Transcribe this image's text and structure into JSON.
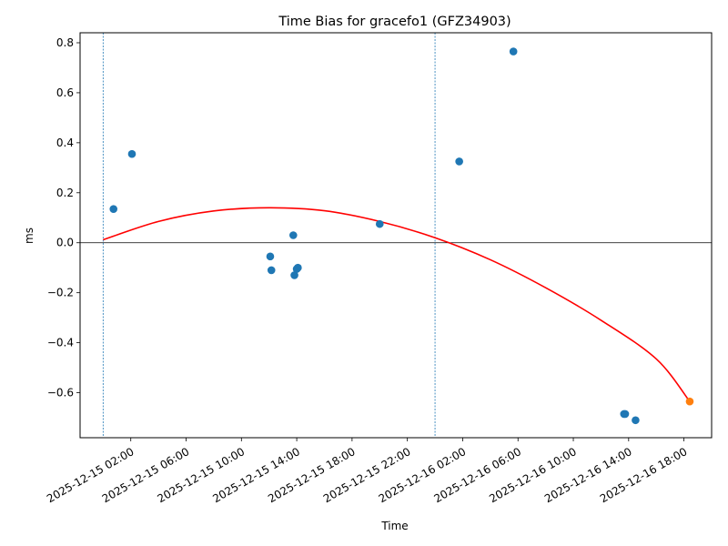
{
  "chart_data": {
    "type": "scatter",
    "title": "Time Bias for gracefo1 (GFZ34903)",
    "xlabel": "Time",
    "ylabel": "ms",
    "xlim": [
      "2025-12-14 22:20",
      "2025-12-16 20:00"
    ],
    "ylim": [
      -0.78,
      0.84
    ],
    "yticks": [
      -0.6,
      -0.4,
      -0.2,
      0.0,
      0.2,
      0.4,
      0.6,
      0.8
    ],
    "ytick_labels": [
      "−0.6",
      "−0.4",
      "−0.2",
      "0.0",
      "0.2",
      "0.4",
      "0.6",
      "0.8"
    ],
    "xticks": [
      "2025-12-15 02:00",
      "2025-12-15 06:00",
      "2025-12-15 10:00",
      "2025-12-15 14:00",
      "2025-12-15 18:00",
      "2025-12-15 22:00",
      "2025-12-16 02:00",
      "2025-12-16 06:00",
      "2025-12-16 10:00",
      "2025-12-16 14:00",
      "2025-12-16 18:00"
    ],
    "grid": false,
    "zero_line": 0,
    "vertical_lines": [
      "2025-12-15 00:00",
      "2025-12-16 00:00"
    ],
    "series": [
      {
        "color": "#1f77b4",
        "points": [
          {
            "x": "2025-12-15 00:45",
            "y": 0.135
          },
          {
            "x": "2025-12-15 02:05",
            "y": 0.355
          },
          {
            "x": "2025-12-15 12:05",
            "y": -0.055
          },
          {
            "x": "2025-12-15 12:10",
            "y": -0.11
          },
          {
            "x": "2025-12-15 13:45",
            "y": 0.03
          },
          {
            "x": "2025-12-15 13:50",
            "y": -0.13
          },
          {
            "x": "2025-12-15 14:00",
            "y": -0.105
          },
          {
            "x": "2025-12-15 14:05",
            "y": -0.1
          },
          {
            "x": "2025-12-15 20:00",
            "y": 0.075
          },
          {
            "x": "2025-12-16 01:45",
            "y": 0.325
          },
          {
            "x": "2025-12-16 05:40",
            "y": 0.765
          },
          {
            "x": "2025-12-16 13:40",
            "y": -0.685
          },
          {
            "x": "2025-12-16 13:45",
            "y": -0.685
          },
          {
            "x": "2025-12-16 14:30",
            "y": -0.71
          }
        ]
      },
      {
        "color": "#ff7f0e",
        "points": [
          {
            "x": "2025-12-16 18:25",
            "y": -0.635
          }
        ]
      }
    ],
    "fit_curve": {
      "color": "#ff0000",
      "points": [
        {
          "x": "2025-12-15 00:00",
          "y": 0.012
        },
        {
          "x": "2025-12-15 04:00",
          "y": 0.085
        },
        {
          "x": "2025-12-15 08:00",
          "y": 0.127
        },
        {
          "x": "2025-12-15 12:00",
          "y": 0.14
        },
        {
          "x": "2025-12-15 16:00",
          "y": 0.128
        },
        {
          "x": "2025-12-15 20:00",
          "y": 0.085
        },
        {
          "x": "2025-12-16 00:00",
          "y": 0.02
        },
        {
          "x": "2025-12-16 04:00",
          "y": -0.068
        },
        {
          "x": "2025-12-16 08:00",
          "y": -0.18
        },
        {
          "x": "2025-12-16 12:00",
          "y": -0.31
        },
        {
          "x": "2025-12-16 16:00",
          "y": -0.465
        },
        {
          "x": "2025-12-16 18:25",
          "y": -0.635
        }
      ]
    }
  }
}
